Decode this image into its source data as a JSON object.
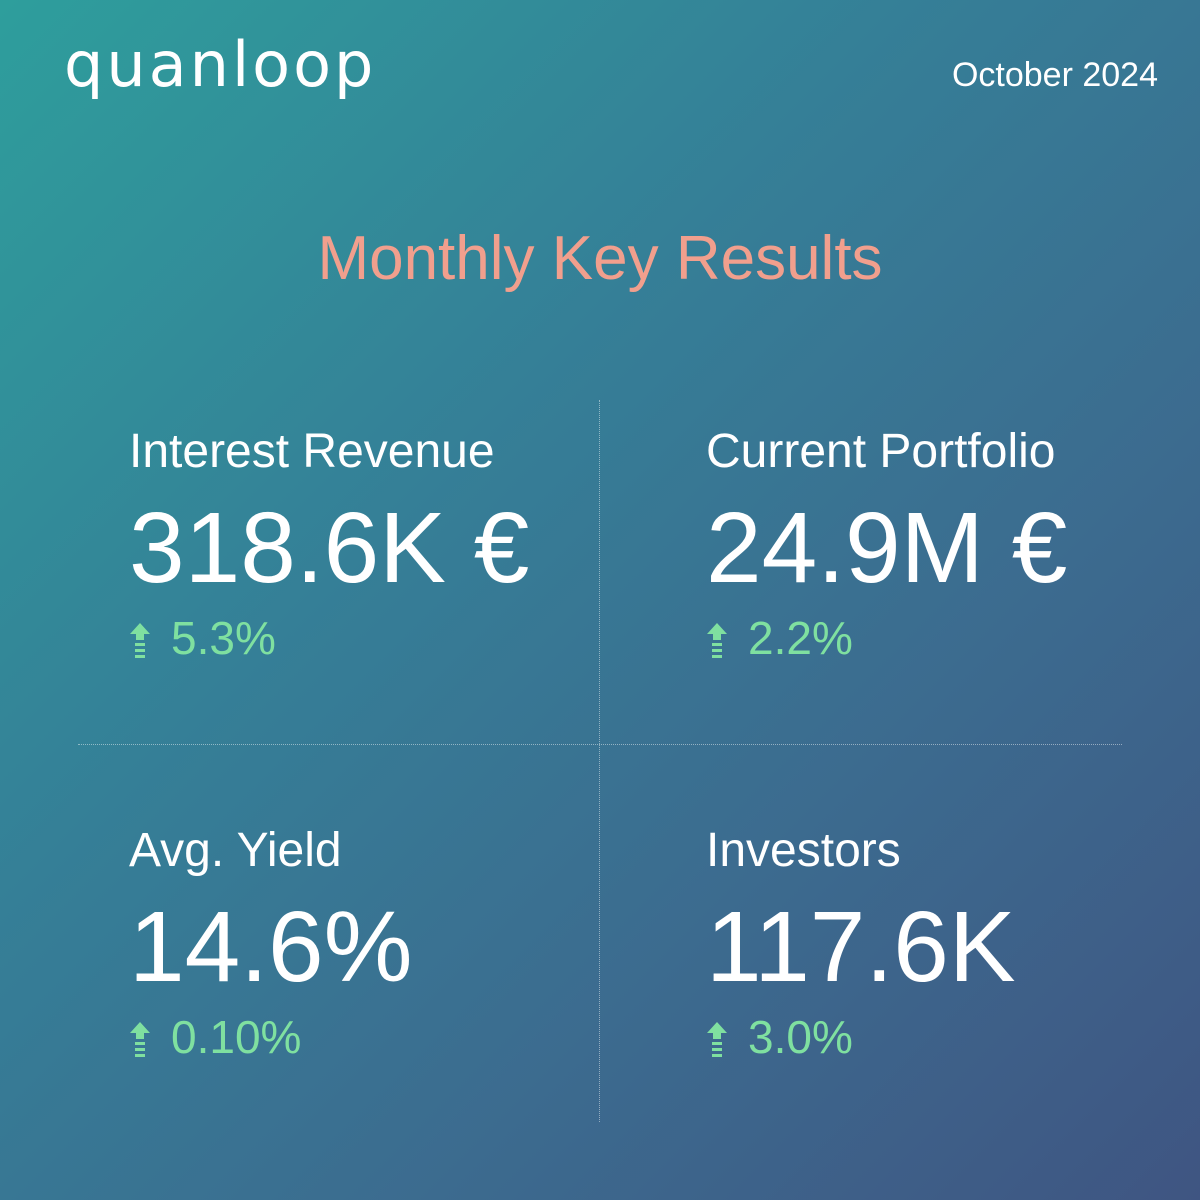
{
  "header": {
    "logo_text": "quanloop",
    "date": "October 2024"
  },
  "title": "Monthly Key Results",
  "colors": {
    "title": "#f19f8d",
    "positive_change": "#7fe0a0",
    "text": "#ffffff",
    "background_start": "#2e9e9c",
    "background_end": "#3f5582"
  },
  "metrics": [
    {
      "label": "Interest Revenue",
      "value": "318.6K €",
      "change": "5.3%",
      "direction": "up",
      "icon": "up-arrow-icon"
    },
    {
      "label": "Current Portfolio",
      "value": "24.9M €",
      "change": "2.2%",
      "direction": "up",
      "icon": "up-arrow-icon"
    },
    {
      "label": "Avg. Yield",
      "value": "14.6%",
      "change": "0.10%",
      "direction": "up",
      "icon": "up-arrow-icon"
    },
    {
      "label": "Investors",
      "value": "117.6K",
      "change": "3.0%",
      "direction": "up",
      "icon": "up-arrow-icon"
    }
  ]
}
